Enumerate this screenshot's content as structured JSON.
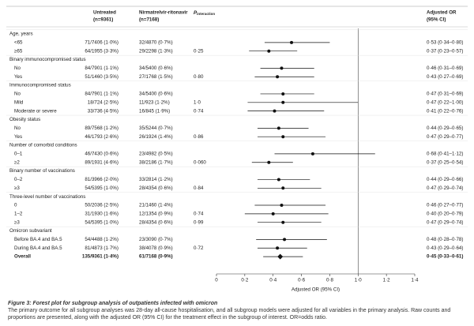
{
  "chart_data": {
    "type": "forest",
    "headers": {
      "untreated": [
        "Untreated",
        "(n=9361)"
      ],
      "treated": [
        "Nirmatrelvir-ritonavir",
        "(n=7168)"
      ],
      "p": "P",
      "p_sub": "interaction",
      "or": [
        "Adjusted OR",
        "(95% CI)"
      ]
    },
    "rows": [
      {
        "label": "Age, years"
      },
      {
        "label": "<65",
        "untreated": "71/7406 (1·0%)",
        "treated": "32/4870 (0·7%)",
        "or": 0.53,
        "lo": 0.34,
        "hi": 0.8,
        "or_label": "0·53 (0·34–0·80)"
      },
      {
        "label": "≥65",
        "untreated": "64/1955 (3·3%)",
        "treated": "29/2298 (1·3%)",
        "p": "0·25",
        "or": 0.37,
        "lo": 0.23,
        "hi": 0.57,
        "or_label": "0·37 (0·23–0·57)"
      },
      {
        "label": "Binary immunocompromised status"
      },
      {
        "label": "No",
        "untreated": "84/7901 (1·1%)",
        "treated": "34/5400 (0·6%)",
        "or": 0.46,
        "lo": 0.31,
        "hi": 0.69,
        "or_label": "0·46 (0·31–0·69)"
      },
      {
        "label": "Yes",
        "untreated": "51/1460 (3·5%)",
        "treated": "27/1768 (1·5%)",
        "p": "0·80",
        "or": 0.43,
        "lo": 0.27,
        "hi": 0.69,
        "or_label": "0·43 (0·27–0·69)"
      },
      {
        "label": "Immunocompromised status"
      },
      {
        "label": "No",
        "untreated": "84/7901 (1·1%)",
        "treated": "34/5400 (0·6%)",
        "or": 0.47,
        "lo": 0.31,
        "hi": 0.69,
        "or_label": "0·47 (0·31–0·69)"
      },
      {
        "label": "Mild",
        "untreated": "18/724 (2·5%)",
        "treated": "11/923 (1·2%)",
        "p": "1·0",
        "or": 0.47,
        "lo": 0.22,
        "hi": 1.0,
        "or_label": "0·47 (0·22–1·00)"
      },
      {
        "label": "Moderate or severe",
        "untreated": "33/736 (4·5%)",
        "treated": "16/845 (1·9%)",
        "p": "0·74",
        "or": 0.41,
        "lo": 0.22,
        "hi": 0.76,
        "or_label": "0·41 (0·22–0·76)"
      },
      {
        "label": "Obesity status"
      },
      {
        "label": "No",
        "untreated": "89/7568 (1·2%)",
        "treated": "35/5244 (0·7%)",
        "or": 0.44,
        "lo": 0.29,
        "hi": 0.65,
        "or_label": "0·44 (0·29–0·65)"
      },
      {
        "label": "Yes",
        "untreated": "46/1793 (2·6%)",
        "treated": "26/1924 (1·4%)",
        "p": "0·86",
        "or": 0.47,
        "lo": 0.29,
        "hi": 0.77,
        "or_label": "0·47 (0·29–0·77)"
      },
      {
        "label": "Number of comorbid conditions"
      },
      {
        "label": "0–1",
        "untreated": "46/7430 (0·6%)",
        "treated": "23/4982 (0·5%)",
        "or": 0.68,
        "lo": 0.41,
        "hi": 1.12,
        "or_label": "0·68 (0·41–1·12)"
      },
      {
        "label": "≥2",
        "untreated": "89/1931 (4·6%)",
        "treated": "38/2186 (1·7%)",
        "p": "0·060",
        "or": 0.37,
        "lo": 0.25,
        "hi": 0.54,
        "or_label": "0·37 (0·25–0·54)"
      },
      {
        "label": "Binary number of vaccinations"
      },
      {
        "label": "0–2",
        "untreated": "81/3966 (2·0%)",
        "treated": "33/2814 (1·2%)",
        "or": 0.44,
        "lo": 0.29,
        "hi": 0.66,
        "or_label": "0·44 (0·29–0·66)"
      },
      {
        "label": "≥3",
        "untreated": "54/5395 (1·0%)",
        "treated": "28/4354 (0·6%)",
        "p": "0·84",
        "or": 0.47,
        "lo": 0.29,
        "hi": 0.74,
        "or_label": "0·47 (0·29–0·74)"
      },
      {
        "label": "Three-level number of vaccinations"
      },
      {
        "label": "0",
        "untreated": "50/2036 (2·5%)",
        "treated": "21/1460 (1·4%)",
        "or": 0.46,
        "lo": 0.27,
        "hi": 0.77,
        "or_label": "0·46 (0·27–0·77)"
      },
      {
        "label": "1–2",
        "untreated": "31/1930 (1·6%)",
        "treated": "12/1354 (0·9%)",
        "p": "0·74",
        "or": 0.4,
        "lo": 0.2,
        "hi": 0.79,
        "or_label": "0·40 (0·20–0·79)"
      },
      {
        "label": "≥3",
        "untreated": "54/5395 (1·0%)",
        "treated": "28/4354 (0·6%)",
        "p": "0·99",
        "or": 0.47,
        "lo": 0.29,
        "hi": 0.74,
        "or_label": "0·47 (0·29–0·74)"
      },
      {
        "label": "Omicron subvariant"
      },
      {
        "label": "Before BA.4 and BA.5",
        "untreated": "54/4488 (1·2%)",
        "treated": "23/3090 (0·7%)",
        "or": 0.48,
        "lo": 0.28,
        "hi": 0.78,
        "or_label": "0·48 (0·28–0·78)"
      },
      {
        "label": "During BA.4 and BA.5",
        "untreated": "81/4873 (1·7%)",
        "treated": "38/4078 (0·9%)",
        "p": "0·72",
        "or": 0.43,
        "lo": 0.29,
        "hi": 0.64,
        "or_label": "0·43 (0·29–0·64)"
      },
      {
        "label": "Overall",
        "untreated": "135/9361 (1·4%)",
        "treated": "61/7168 (0·9%)",
        "or": 0.45,
        "lo": 0.33,
        "hi": 0.61,
        "or_label": "0·45 (0·33–0·61)",
        "overall": true
      }
    ],
    "xlim": [
      0,
      1.4
    ],
    "xticks": [
      {
        "value": 0,
        "label": "0"
      },
      {
        "value": 0.2,
        "label": "0·2"
      },
      {
        "value": 0.4,
        "label": "0·4"
      },
      {
        "value": 0.6,
        "label": "0·6"
      },
      {
        "value": 0.8,
        "label": "0·8"
      },
      {
        "value": 1.0,
        "label": "1·0"
      },
      {
        "value": 1.2,
        "label": "1·2"
      },
      {
        "value": 1.4,
        "label": "1·4"
      }
    ],
    "reference": 1,
    "xlabel": "Adjusted OR (95% CI)"
  },
  "caption": {
    "label": "Figure 3:",
    "title": "Forest plot for subgroup analysis of outpatients infected with omicron",
    "text": "The primary outcome for all subgroup analyses was 28-day all-cause hospitalisation, and all subgroup models were adjusted for all variables in the primary analysis. Raw counts and proportions are presented, along with the adjusted OR (95% CI) for the treatment effect in the subgroup of interest. OR=odds ratio."
  }
}
